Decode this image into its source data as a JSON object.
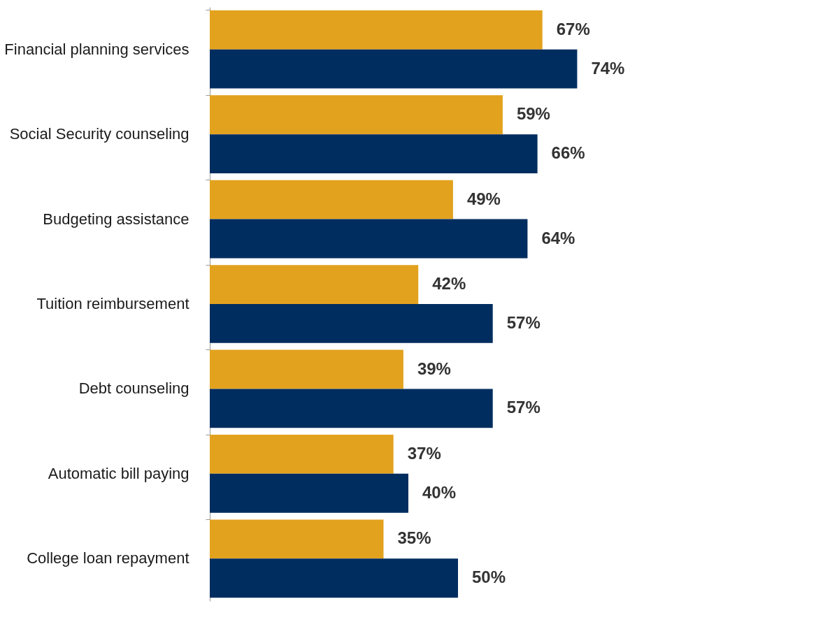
{
  "chart_data": {
    "type": "bar",
    "orientation": "horizontal",
    "categories": [
      "Financial planning services",
      "Social Security counseling",
      "Budgeting assistance",
      "Tuition reimbursement",
      "Debt counseling",
      "Automatic bill paying",
      "College loan repayment"
    ],
    "series": [
      {
        "color": "#e3a21e",
        "values": [
          67,
          59,
          49,
          42,
          39,
          37,
          35
        ],
        "value_labels": [
          "67%",
          "59%",
          "49%",
          "42%",
          "39%",
          "37%",
          "35%"
        ]
      },
      {
        "color": "#002d5f",
        "values": [
          74,
          66,
          64,
          57,
          57,
          40,
          50
        ],
        "value_labels": [
          "74%",
          "66%",
          "64%",
          "57%",
          "57%",
          "40%",
          "50%"
        ]
      }
    ],
    "tick_labels": "y",
    "grid": false
  }
}
